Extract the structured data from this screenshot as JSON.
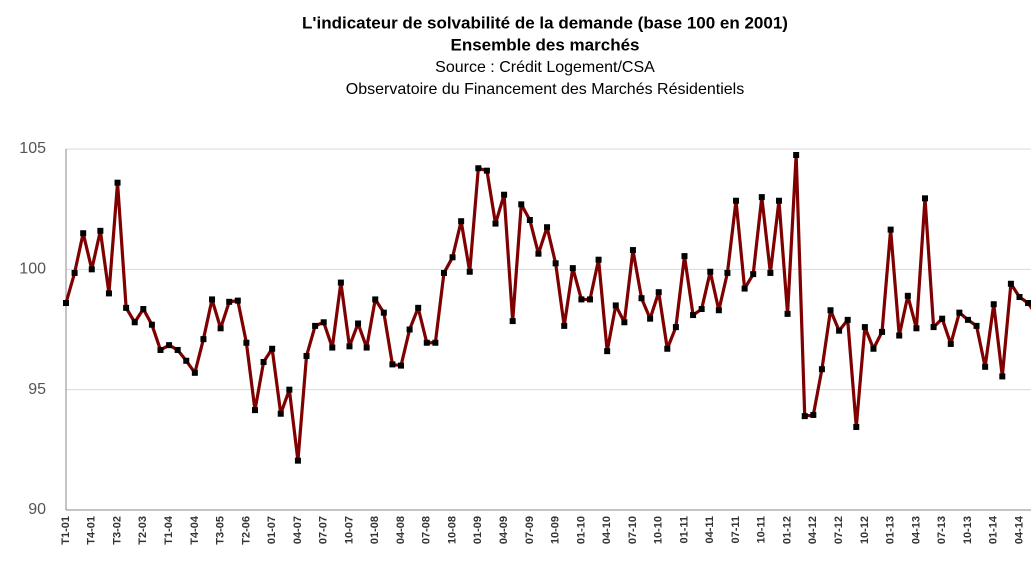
{
  "chart_data": {
    "type": "line",
    "title": "L'indicateur de solvabilité de la demande (base 100 en 2001)",
    "subtitle": "Ensemble des marchés",
    "source": "Source : Crédit Logement/CSA",
    "note": "Observatoire du Financement des Marchés Résidentiels",
    "categories": [
      "T1-01",
      null,
      null,
      "T4-01",
      null,
      null,
      "T3-02",
      null,
      null,
      "T2-03",
      null,
      null,
      "T1-04",
      null,
      null,
      "T4-04",
      null,
      null,
      "T3-05",
      null,
      null,
      "T2-06",
      null,
      null,
      "01-07",
      null,
      null,
      "04-07",
      null,
      null,
      "07-07",
      null,
      null,
      "10-07",
      null,
      null,
      "01-08",
      null,
      null,
      "04-08",
      null,
      null,
      "07-08",
      null,
      null,
      "10-08",
      null,
      null,
      "01-09",
      null,
      null,
      "04-09",
      null,
      null,
      "07-09",
      null,
      null,
      "10-09",
      null,
      null,
      "01-10",
      null,
      null,
      "04-10",
      null,
      null,
      "07-10",
      null,
      null,
      "10-10",
      null,
      null,
      "01-11",
      null,
      null,
      "04-11",
      null,
      null,
      "07-11",
      null,
      null,
      "10-11",
      null,
      null,
      "01-12",
      null,
      null,
      "04-12",
      null,
      null,
      "07-12",
      null,
      null,
      "10-12",
      null,
      null,
      "01-13",
      null,
      null,
      "04-13",
      null,
      null,
      "07-13",
      null,
      null,
      "10-13",
      null,
      null,
      "01-14",
      null,
      null,
      "04-14",
      null,
      null
    ],
    "series": [
      {
        "color": "#7f0000",
        "marker_color": "#000000",
        "values": [
          98.6,
          99.85,
          101.5,
          100.0,
          101.6,
          99.0,
          103.6,
          98.4,
          97.8,
          98.35,
          97.7,
          96.65,
          96.85,
          96.65,
          96.2,
          95.7,
          97.1,
          98.75,
          97.55,
          98.65,
          98.7,
          96.95,
          94.15,
          96.15,
          96.7,
          94.0,
          95.0,
          92.05,
          96.4,
          97.65,
          97.8,
          96.75,
          99.45,
          96.8,
          97.75,
          96.75,
          98.75,
          98.2,
          96.05,
          96.0,
          97.5,
          98.4,
          96.95,
          96.95,
          99.85,
          100.5,
          102.0,
          99.9,
          104.2,
          104.1,
          101.9,
          103.1,
          97.85,
          102.7,
          102.05,
          100.65,
          101.75,
          100.25,
          97.65,
          100.05,
          98.75,
          98.75,
          100.4,
          96.6,
          98.5,
          97.8,
          100.8,
          98.8,
          97.95,
          99.05,
          96.7,
          97.6,
          100.55,
          98.1,
          98.35,
          99.9,
          98.3,
          99.85,
          102.85,
          99.2,
          99.8,
          103.0,
          99.85,
          102.85,
          98.15,
          104.75,
          93.9,
          93.95,
          95.85,
          98.3,
          97.45,
          97.9,
          93.45,
          97.6,
          96.7,
          97.4,
          101.65,
          97.25,
          98.9,
          97.55,
          102.95,
          97.6,
          97.95,
          96.9,
          98.2,
          97.9,
          97.65,
          95.95,
          98.55,
          95.55,
          99.4,
          98.85,
          98.6,
          98.1
        ]
      }
    ],
    "ylim": [
      90,
      105
    ],
    "yticks": [
      90,
      95,
      100,
      105
    ],
    "grid": true
  }
}
